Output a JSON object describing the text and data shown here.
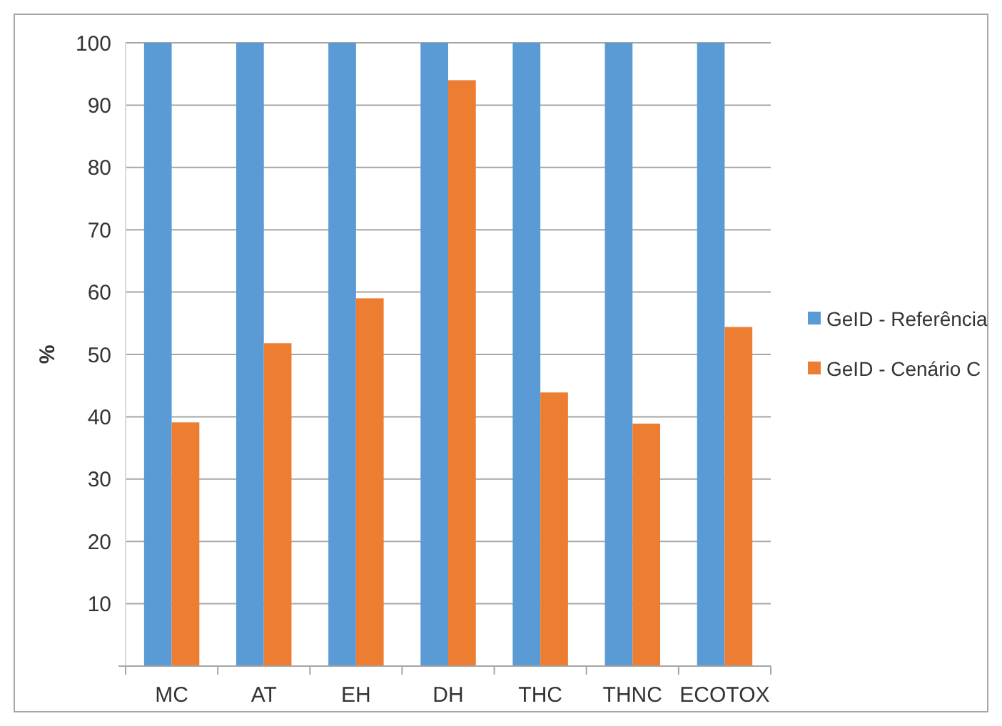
{
  "chart_data": {
    "type": "bar",
    "ylabel": "%",
    "categories": [
      "MC",
      "AT",
      "EH",
      "DH",
      "THC",
      "THNC",
      "ECOTOX"
    ],
    "series": [
      {
        "name": "GeID - Referência",
        "color": "#5b9bd5",
        "values": [
          100,
          100,
          100,
          100,
          100,
          100,
          100
        ]
      },
      {
        "name": "GeID - Cenário C",
        "color": "#ed7d31",
        "values": [
          39.1,
          51.8,
          59.0,
          94.0,
          43.9,
          38.9,
          54.4
        ]
      }
    ],
    "ylim": [
      0,
      100
    ],
    "yticks": [
      {
        "value": 0,
        "label": null
      },
      10,
      20,
      30,
      40,
      50,
      60,
      70,
      80,
      90,
      100
    ],
    "grid": "y",
    "legend": "right"
  }
}
